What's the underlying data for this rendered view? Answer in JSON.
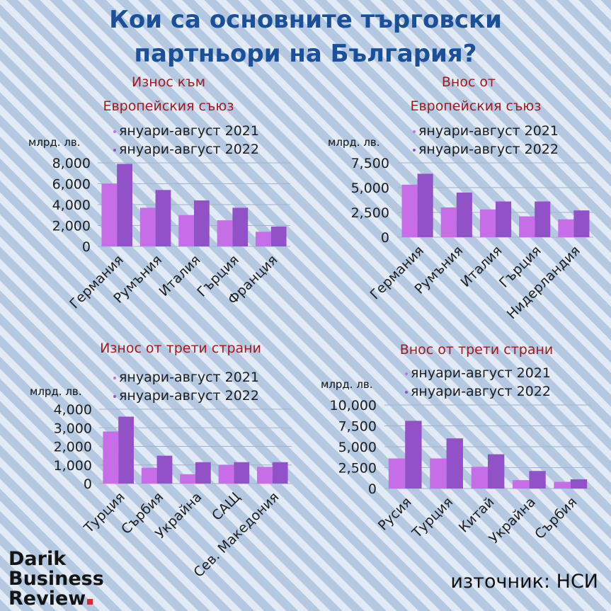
{
  "title": {
    "line1": "Кои са основните търговски",
    "line2": "партньори на България?"
  },
  "colors": {
    "series_2021": "#c76de8",
    "series_2022": "#9152c8"
  },
  "source": "източник: НСИ",
  "logo": {
    "line1": "Darik",
    "line2": "Business",
    "line3": "Review"
  },
  "chart_data": [
    {
      "type": "bar",
      "title_line1": "Износ към",
      "title_line2": "Европейския съюз",
      "ylabel": "млрд. лв.",
      "categories": [
        "Германия",
        "Румъния",
        "Италия",
        "Гърция",
        "Франция"
      ],
      "series": [
        {
          "name": "януари-август 2021",
          "values": [
            6000,
            3700,
            3000,
            2500,
            1400
          ]
        },
        {
          "name": "януари-август 2022",
          "values": [
            7900,
            5400,
            4400,
            3700,
            1900
          ]
        }
      ],
      "ylim": [
        0,
        8000
      ],
      "yticks": [
        0,
        2000,
        4000,
        6000,
        8000
      ],
      "ytick_labels": [
        "0",
        "2,000",
        "4,000",
        "6,000",
        "8,000"
      ],
      "grid": true,
      "legend": "top"
    },
    {
      "type": "bar",
      "title_line1": "Внос от",
      "title_line2": "Европейския съюз",
      "ylabel": "млрд. лв.",
      "categories": [
        "Германия",
        "Румъния",
        "Италия",
        "Гърция",
        "Нидерландия"
      ],
      "series": [
        {
          "name": "януари-август 2021",
          "values": [
            5300,
            3000,
            2800,
            2100,
            1800
          ]
        },
        {
          "name": "януари-август 2022",
          "values": [
            6400,
            4500,
            3600,
            3600,
            2700
          ]
        }
      ],
      "ylim": [
        0,
        7500
      ],
      "yticks": [
        0,
        2500,
        5000,
        7500
      ],
      "ytick_labels": [
        "0",
        "2,500",
        "5,000",
        "7,500"
      ],
      "grid": true,
      "legend": "top"
    },
    {
      "type": "bar",
      "title_line1": "Износ от  трети страни",
      "title_line2": "",
      "ylabel": "млрд. лв.",
      "categories": [
        "Турция",
        "Сърбия",
        "Украйна",
        "САЩ",
        "Сев. Македония"
      ],
      "series": [
        {
          "name": "януари-август 2021",
          "values": [
            2800,
            850,
            500,
            1000,
            900
          ]
        },
        {
          "name": "януари-август 2022",
          "values": [
            3600,
            1500,
            1150,
            1150,
            1150
          ]
        }
      ],
      "ylim": [
        0,
        4000
      ],
      "yticks": [
        0,
        1000,
        2000,
        3000,
        4000
      ],
      "ytick_labels": [
        "0",
        "1,000",
        "2,000",
        "3,000",
        "4,000"
      ],
      "grid": true,
      "legend": "top"
    },
    {
      "type": "bar",
      "title_line1": "Внос от  трети страни",
      "title_line2": "",
      "ylabel": "млрд. лв.",
      "categories": [
        "Русия",
        "Турция",
        "Китай",
        "Украйна",
        "Сърбия"
      ],
      "series": [
        {
          "name": "януари-август 2021",
          "values": [
            3600,
            3600,
            2600,
            1000,
            800
          ]
        },
        {
          "name": "януари-август 2022",
          "values": [
            8100,
            6000,
            4100,
            2100,
            1100
          ]
        }
      ],
      "ylim": [
        0,
        10000
      ],
      "yticks": [
        0,
        2500,
        5000,
        7500,
        10000
      ],
      "ytick_labels": [
        "0",
        "2,500",
        "5,000",
        "7,500",
        "10,000"
      ],
      "grid": true,
      "legend": "top"
    }
  ]
}
